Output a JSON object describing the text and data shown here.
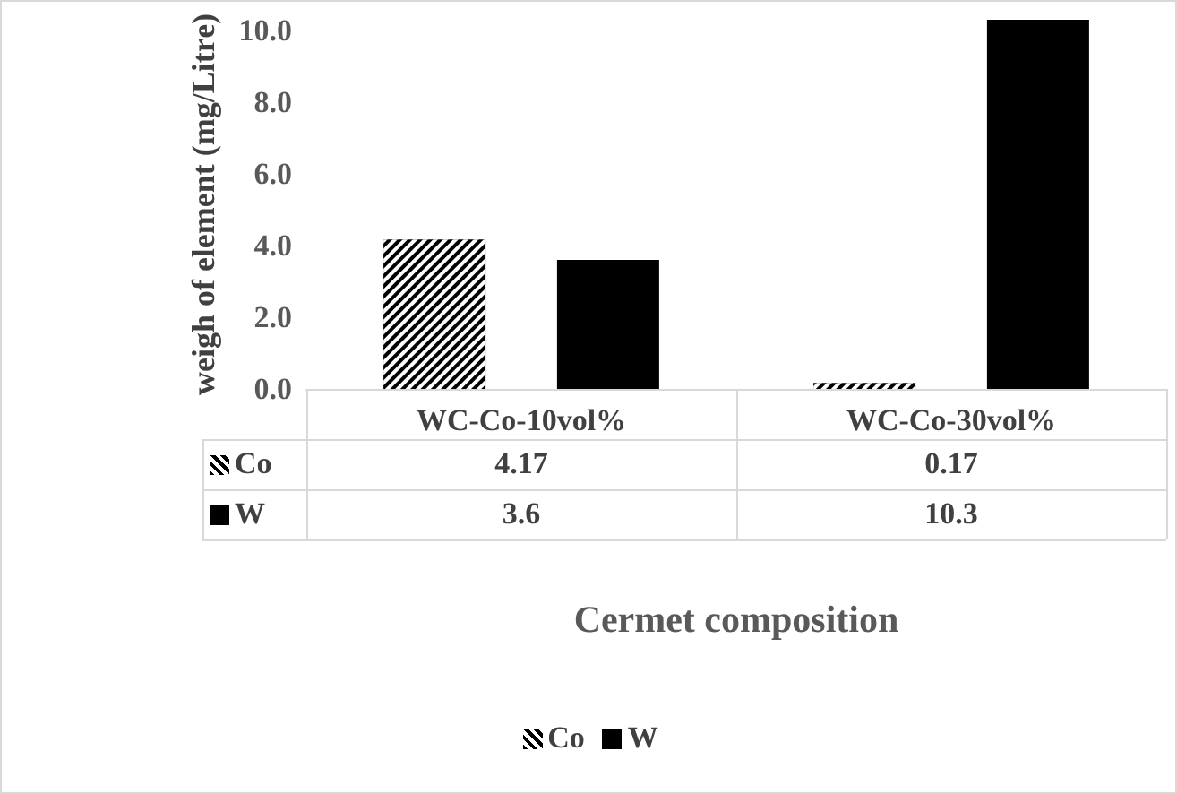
{
  "chart_data": {
    "type": "bar",
    "ylabel": "weigh of element (mg/Litre)",
    "xlabel": "Cermet composition",
    "categories": [
      "WC-Co-10vol%",
      "WC-Co-30vol%"
    ],
    "series": [
      {
        "name": "Co",
        "color": "#000000",
        "values": [
          4.17,
          0.17
        ]
      },
      {
        "name": "W",
        "color": "#000000",
        "values": [
          3.6,
          10.3
        ]
      }
    ],
    "ylim": [
      0,
      10.3
    ],
    "yticks": [
      {
        "value": 0,
        "label": "0.0"
      },
      {
        "value": 2,
        "label": "2.0"
      },
      {
        "value": 4,
        "label": "4.0"
      },
      {
        "value": 6,
        "label": "6.0"
      },
      {
        "value": 8,
        "label": "8.0"
      },
      {
        "value": 10,
        "label": "10.0"
      }
    ],
    "grid": false,
    "legend": "bottom",
    "data_labels": true
  }
}
